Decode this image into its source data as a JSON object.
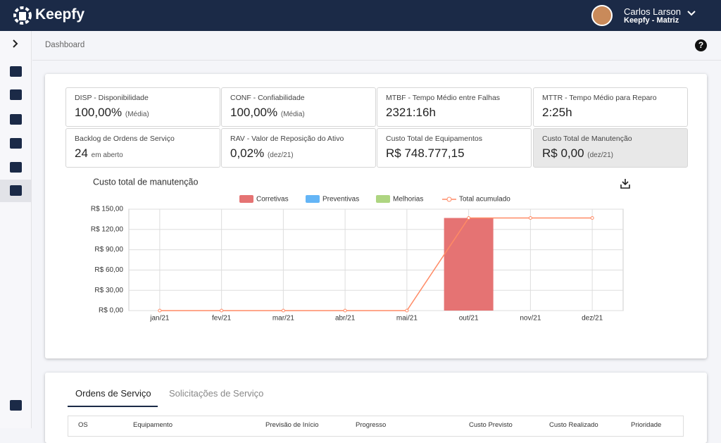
{
  "header": {
    "brand": "Keepfy",
    "user_name": "Carlos Larson",
    "user_org": "Keepfy - Matriz"
  },
  "breadcrumb": "Dashboard",
  "kpis": [
    {
      "label": "DISP - Disponibilidade",
      "value": "100,00%",
      "note": "(Média)"
    },
    {
      "label": "CONF - Confiabilidade",
      "value": "100,00%",
      "note": "(Média)"
    },
    {
      "label": "MTBF - Tempo Médio entre Falhas",
      "value": "2321:16h"
    },
    {
      "label": "MTTR - Tempo Médio para Reparo",
      "value": "2:25h"
    },
    {
      "label": "Backlog de Ordens de Serviço",
      "value": "24",
      "note": "em aberto"
    },
    {
      "label": "RAV - Valor de Reposição do Ativo",
      "value": "0,02%",
      "note": "(dez/21)"
    },
    {
      "label": "Custo Total de Equipamentos",
      "value": "R$ 748.777,15"
    },
    {
      "label": "Custo Total de Manutenção",
      "value": "R$ 0,00",
      "note": "(dez/21)"
    }
  ],
  "chart_data": {
    "type": "bar",
    "title": "Custo total de manutenção",
    "categories": [
      "jan/21",
      "fev/21",
      "mar/21",
      "abr/21",
      "mai/21",
      "out/21",
      "nov/21",
      "dez/21"
    ],
    "series": [
      {
        "name": "Corretivas",
        "color": "#e57373",
        "values": [
          0,
          0,
          0,
          0,
          0,
          137,
          0,
          0
        ]
      },
      {
        "name": "Preventivas",
        "color": "#64b5f6",
        "values": [
          0,
          0,
          0,
          0,
          0,
          0,
          0,
          0
        ]
      },
      {
        "name": "Melhorias",
        "color": "#aed581",
        "values": [
          0,
          0,
          0,
          0,
          0,
          0,
          0,
          0
        ]
      },
      {
        "name": "Total acumulado",
        "type": "line",
        "color": "#ff8a65",
        "values": [
          0,
          0,
          0,
          0,
          0,
          137,
          137,
          137
        ]
      }
    ],
    "ylim": [
      0,
      150
    ],
    "yticks": [
      {
        "value": 0,
        "label": "R$ 0,00"
      },
      {
        "value": 30,
        "label": "R$ 30,00"
      },
      {
        "value": 60,
        "label": "R$ 60,00"
      },
      {
        "value": 90,
        "label": "R$ 90,00"
      },
      {
        "value": 120,
        "label": "R$ 120,00"
      },
      {
        "value": 150,
        "label": "R$ 150,00"
      }
    ],
    "grid": true
  },
  "tabs": [
    "Ordens de Serviço",
    "Solicitações de Serviço"
  ],
  "table": {
    "columns": [
      "OS",
      "Equipamento",
      "Previsão de Início",
      "Progresso",
      "Custo Previsto",
      "Custo Realizado",
      "Prioridade"
    ]
  }
}
